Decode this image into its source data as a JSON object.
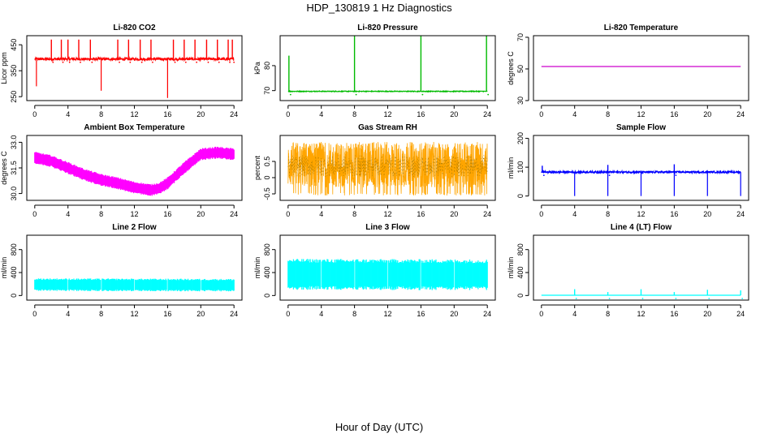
{
  "figure": {
    "title": "HDP_130819  1 Hz Diagnostics",
    "xlabel": "Hour of Day (UTC)"
  },
  "chart_data": [
    {
      "id": "p1",
      "type": "line",
      "title": "Li-820 CO2",
      "ylabel": "Licor ppm",
      "color": "#ff0000",
      "xlim": [
        0,
        24
      ],
      "ylim": [
        235,
        485
      ],
      "xticks": [
        0,
        4,
        8,
        12,
        16,
        20,
        24
      ],
      "yticks": [
        250,
        350,
        450
      ],
      "baseline": 395,
      "noise": 5,
      "spikes": [
        [
          2,
          470
        ],
        [
          3.2,
          470
        ],
        [
          4,
          470
        ],
        [
          5.3,
          470
        ],
        [
          6.7,
          470
        ],
        [
          10,
          470
        ],
        [
          11.3,
          470
        ],
        [
          12.7,
          470
        ],
        [
          14,
          470
        ],
        [
          16.7,
          470
        ],
        [
          18,
          470
        ],
        [
          19.3,
          470
        ],
        [
          20.7,
          470
        ],
        [
          22,
          470
        ],
        [
          23.3,
          470
        ],
        [
          23.8,
          470
        ]
      ],
      "dips": [
        [
          8,
          273
        ],
        [
          16,
          245
        ],
        [
          0.2,
          290
        ]
      ]
    },
    {
      "id": "p2",
      "type": "line",
      "title": "Li-820 Pressure",
      "ylabel": "kPa",
      "color": "#00bb00",
      "xlim": [
        0,
        24
      ],
      "ylim": [
        66,
        92
      ],
      "xticks": [
        0,
        4,
        8,
        12,
        16,
        20,
        24
      ],
      "yticks": [
        70,
        80
      ],
      "baseline": 69.7,
      "noise": 0.15,
      "spikes": [
        [
          0.1,
          84
        ],
        [
          8,
          92
        ],
        [
          16,
          92
        ],
        [
          23.9,
          92
        ]
      ],
      "dips": []
    },
    {
      "id": "p3",
      "type": "line",
      "title": "Li-820 Temperature",
      "ylabel": "degrees C",
      "color": "#cc00cc",
      "xlim": [
        0,
        24
      ],
      "ylim": [
        30,
        71
      ],
      "xticks": [
        0,
        4,
        8,
        12,
        16,
        20,
        24
      ],
      "yticks": [
        30,
        50,
        70
      ],
      "baseline": 51.5,
      "noise": 0,
      "spikes": [],
      "dips": []
    },
    {
      "id": "p4",
      "type": "band",
      "title": "Ambient Box Temperature",
      "ylabel": "degrees C",
      "color": "#ff00ff",
      "xlim": [
        0,
        24
      ],
      "ylim": [
        29.6,
        33.4
      ],
      "xticks": [
        0,
        4,
        8,
        12,
        16,
        20,
        24
      ],
      "yticks": [
        30.0,
        31.5,
        33.0
      ],
      "profile": [
        [
          0,
          32.1
        ],
        [
          2,
          31.9
        ],
        [
          4,
          31.5
        ],
        [
          6,
          31.1
        ],
        [
          8,
          30.8
        ],
        [
          10,
          30.6
        ],
        [
          12,
          30.35
        ],
        [
          14,
          30.2
        ],
        [
          15,
          30.3
        ],
        [
          16,
          30.6
        ],
        [
          18,
          31.5
        ],
        [
          20,
          32.3
        ],
        [
          22,
          32.4
        ],
        [
          24,
          32.3
        ]
      ],
      "halfwidth": 0.35
    },
    {
      "id": "p5",
      "type": "noise",
      "title": "Gas Stream RH",
      "ylabel": "percent",
      "color": "#ffa500",
      "xlim": [
        0,
        24
      ],
      "ylim": [
        -0.7,
        1.3
      ],
      "xticks": [
        0,
        4,
        8,
        12,
        16,
        20,
        24
      ],
      "yticks": [
        -0.5,
        0.0,
        0.5
      ],
      "low": -0.55,
      "high": 1.1
    },
    {
      "id": "p6",
      "type": "line",
      "title": "Sample Flow",
      "ylabel": "ml/min",
      "color": "#0000ff",
      "xlim": [
        0,
        24
      ],
      "ylim": [
        -15,
        210
      ],
      "xticks": [
        0,
        4,
        8,
        12,
        16,
        20,
        24
      ],
      "yticks": [
        0,
        100,
        200
      ],
      "baseline": 83,
      "noise": 3,
      "spikes": [
        [
          0.1,
          105
        ],
        [
          8,
          108
        ],
        [
          16,
          110
        ]
      ],
      "dips": [
        [
          4,
          0
        ],
        [
          8,
          0
        ],
        [
          12,
          0
        ],
        [
          16,
          0
        ],
        [
          20,
          0
        ],
        [
          24,
          0
        ]
      ]
    },
    {
      "id": "p7",
      "type": "band",
      "title": "Line 2 Flow",
      "ylabel": "ml/min",
      "color": "#00ffff",
      "xlim": [
        0,
        24
      ],
      "ylim": [
        -80,
        1050
      ],
      "xticks": [
        0,
        4,
        8,
        12,
        16,
        20,
        24
      ],
      "yticks": [
        0,
        400,
        800
      ],
      "profile": [
        [
          0,
          190
        ],
        [
          24,
          180
        ]
      ],
      "halfwidth": 110,
      "gaps": [
        4,
        8,
        12,
        16,
        20
      ]
    },
    {
      "id": "p8",
      "type": "band",
      "title": "Line 3 Flow",
      "ylabel": "ml/min",
      "color": "#00ffff",
      "xlim": [
        0,
        24
      ],
      "ylim": [
        -80,
        1050
      ],
      "xticks": [
        0,
        4,
        8,
        12,
        16,
        20,
        24
      ],
      "yticks": [
        0,
        400,
        800
      ],
      "profile": [
        [
          0,
          370
        ],
        [
          24,
          360
        ]
      ],
      "halfwidth": 270,
      "gaps": [
        4,
        8,
        12,
        16,
        20
      ]
    },
    {
      "id": "p9",
      "type": "line",
      "title": "Line 4 (LT) Flow",
      "ylabel": "ml/min",
      "color": "#00ffff",
      "xlim": [
        0,
        24
      ],
      "ylim": [
        -80,
        1050
      ],
      "xticks": [
        0,
        4,
        8,
        12,
        16,
        20,
        24
      ],
      "yticks": [
        0,
        400,
        800
      ],
      "baseline": 5,
      "noise": 0,
      "spikes": [
        [
          4,
          110
        ],
        [
          8,
          60
        ],
        [
          12,
          110
        ],
        [
          16,
          60
        ],
        [
          20,
          100
        ],
        [
          24,
          90
        ]
      ],
      "dips": []
    }
  ]
}
